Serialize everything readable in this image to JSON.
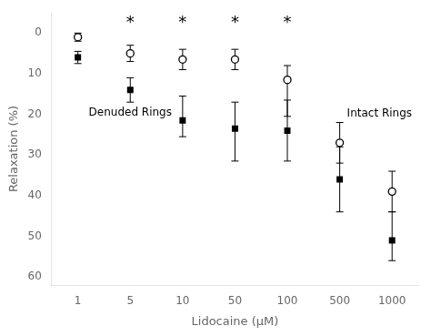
{
  "chart_data": {
    "type": "scatter",
    "categories": [
      "1",
      "5",
      "10",
      "50",
      "100",
      "500",
      "1000"
    ],
    "series": [
      {
        "name": "Intact Rings",
        "color": "#000000",
        "marker": "open_circle",
        "values": [
          1.0,
          5.0,
          6.5,
          6.5,
          11.5,
          27.0,
          39.0
        ],
        "error_minus": [
          1.0,
          2.0,
          2.5,
          2.5,
          3.5,
          5.0,
          5.0
        ],
        "error_plus": [
          1.0,
          2.0,
          2.5,
          2.5,
          9.0,
          5.0,
          5.0
        ]
      },
      {
        "name": "Denuded Rings",
        "color": "#000000",
        "marker": "square",
        "values": [
          6.0,
          14.0,
          21.5,
          23.5,
          24.0,
          36.0,
          51.0
        ],
        "error_minus": [
          1.5,
          3.0,
          6.0,
          6.5,
          7.5,
          8.0,
          7.0
        ],
        "error_plus": [
          1.5,
          3.0,
          4.0,
          8.0,
          7.5,
          8.0,
          5.0
        ]
      }
    ],
    "annotations": [
      {
        "text": "*",
        "x": "5",
        "y": -2.5
      },
      {
        "text": "*",
        "x": "10",
        "y": -2.5
      },
      {
        "text": "*",
        "x": "50",
        "y": -2.5
      },
      {
        "text": "*",
        "x": "100",
        "y": -2.5
      }
    ],
    "x_label": "Lidocaine (μM)",
    "y_label": "Relaxation (%)",
    "ylim": [
      62,
      -5
    ],
    "yticks": [
      0,
      10,
      20,
      30,
      40,
      50,
      60
    ],
    "grid": false,
    "legend": false
  }
}
